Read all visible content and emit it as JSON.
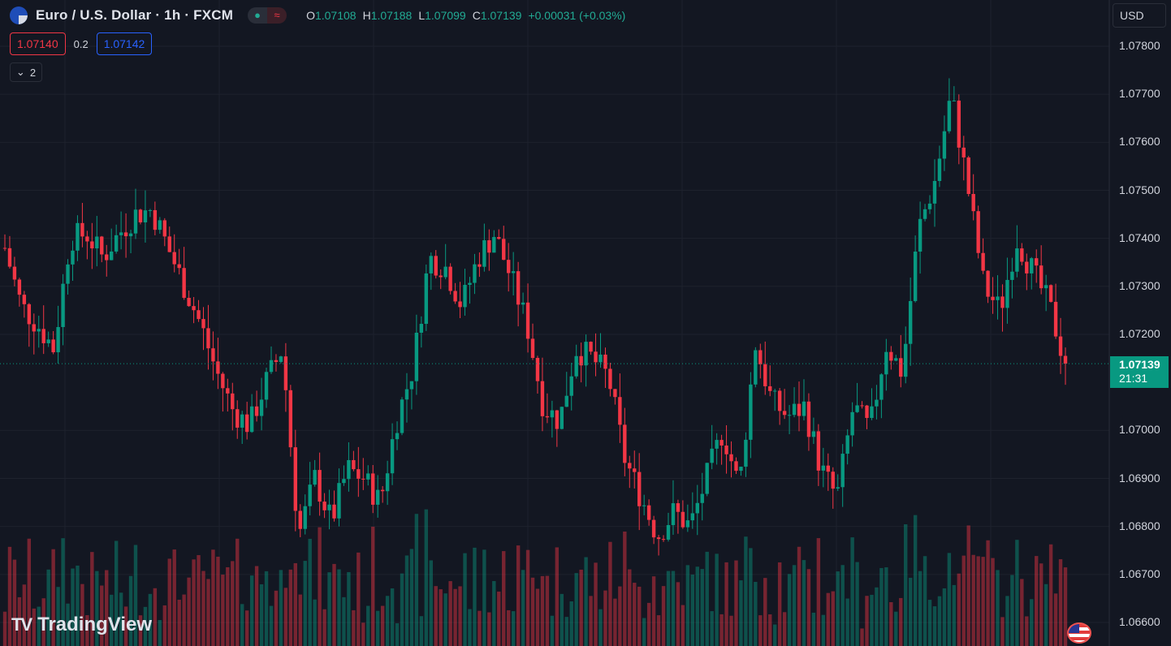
{
  "header": {
    "symbol_title": "Euro / U.S. Dollar · 1h · FXCM",
    "status_icons": [
      "market-open-dot-icon",
      "wave-icon"
    ],
    "ohlc": {
      "o_label": "O",
      "o": "1.07108",
      "h_label": "H",
      "h": "1.07188",
      "l_label": "L",
      "l": "1.07099",
      "c_label": "C",
      "c": "1.07139",
      "change": "+0.00031 (+0.03%)"
    }
  },
  "trade": {
    "sell_price": "1.07140",
    "spread": "0.2",
    "buy_price": "1.07142"
  },
  "indicators_toggle": {
    "count": "2"
  },
  "currency": {
    "label": "USD"
  },
  "last_price": {
    "value": "1.07139",
    "countdown": "21:31"
  },
  "brand": {
    "name": "TradingView"
  },
  "colors": {
    "up": "#089981",
    "down": "#f23645",
    "background": "#131722",
    "grid": "#1e222d"
  },
  "chart_data": {
    "type": "candlestick",
    "title": "Euro / U.S. Dollar · 1h · FXCM",
    "y_ticks": [
      "1.07800",
      "1.07700",
      "1.07600",
      "1.07500",
      "1.07400",
      "1.07300",
      "1.07200",
      "1.07000",
      "1.06900",
      "1.06800",
      "1.06700",
      "1.06600"
    ],
    "ylim": [
      1.0657,
      1.0784
    ],
    "last_price": 1.07139,
    "grid": true,
    "approximate_close_path": [
      1.0738,
      1.0726,
      1.0722,
      1.0717,
      1.074,
      1.0741,
      1.0736,
      1.0741,
      1.0745,
      1.0746,
      1.0738,
      1.073,
      1.0722,
      1.0712,
      1.0704,
      1.0701,
      1.071,
      1.0717,
      1.0678,
      1.069,
      1.0681,
      1.0692,
      1.069,
      1.0685,
      1.0702,
      1.0713,
      1.0736,
      1.0734,
      1.0726,
      1.0736,
      1.0741,
      1.0732,
      1.0722,
      1.0705,
      1.0702,
      1.0717,
      1.0715,
      1.0711,
      1.0694,
      1.0686,
      1.0678,
      1.0683,
      1.068,
      1.069,
      1.07,
      1.0688,
      1.0718,
      1.0706,
      1.0703,
      1.0705,
      1.0692,
      1.0686,
      1.0705,
      1.07,
      1.0718,
      1.0712,
      1.0742,
      1.0752,
      1.077,
      1.0751,
      1.073,
      1.0725,
      1.074,
      1.0733,
      1.0726,
      1.07139
    ]
  }
}
